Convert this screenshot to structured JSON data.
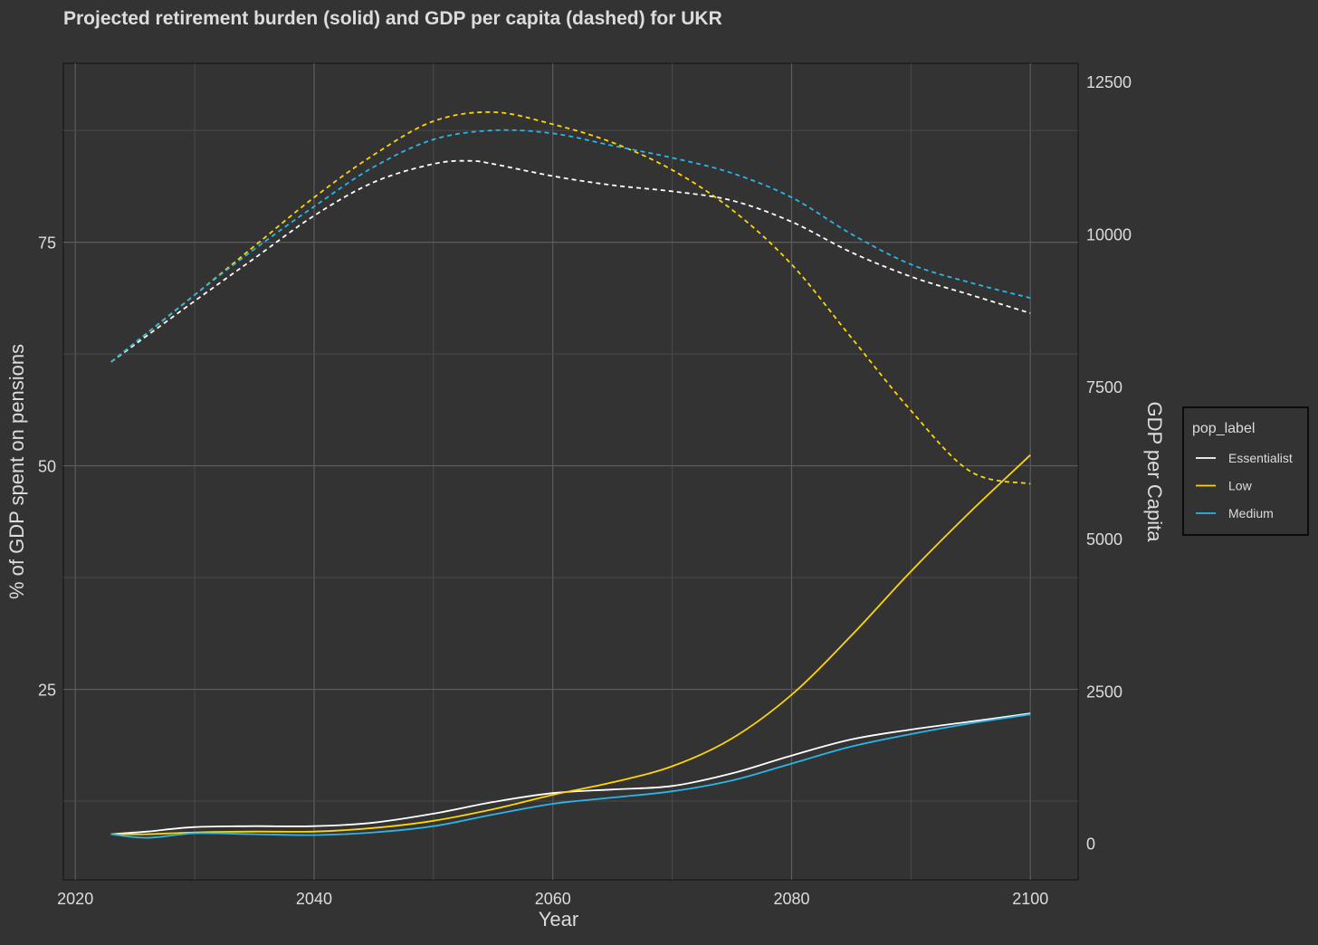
{
  "chart_data": {
    "type": "line",
    "title": "Projected retirement burden (solid) and GDP per capita (dashed) for UKR",
    "xlabel": "Year",
    "ylabel": "% of GDP spent on pensions",
    "y2label": "GDP per Capita",
    "xlim": [
      2019,
      2104
    ],
    "ylim": [
      3.7,
      95
    ],
    "y2lim": [
      -600,
      12800
    ],
    "x_ticks": [
      2020,
      2040,
      2060,
      2080,
      2100
    ],
    "y_ticks": [
      25,
      50,
      75
    ],
    "y2_ticks": [
      0,
      2500,
      5000,
      7500,
      10000,
      12500
    ],
    "legend": {
      "title": "pop_label",
      "position": "right"
    },
    "colors": {
      "Essentialist": "#ffffff",
      "Low": "#ffd700",
      "Medium": "#29b6e8"
    },
    "series": [
      {
        "name": "Essentialist",
        "kind": "pension",
        "axis": "left",
        "style": "solid",
        "x": [
          2023,
          2026,
          2030,
          2035,
          2040,
          2045,
          2050,
          2055,
          2060,
          2065,
          2070,
          2075,
          2080,
          2085,
          2090,
          2095,
          2100
        ],
        "values": [
          8.8,
          9.1,
          9.6,
          9.7,
          9.7,
          10.1,
          11.1,
          12.4,
          13.4,
          13.8,
          14.2,
          15.6,
          17.6,
          19.4,
          20.5,
          21.4,
          22.3
        ]
      },
      {
        "name": "Low",
        "kind": "pension",
        "axis": "left",
        "style": "solid",
        "x": [
          2023,
          2026,
          2030,
          2035,
          2040,
          2045,
          2050,
          2055,
          2060,
          2065,
          2070,
          2075,
          2080,
          2085,
          2090,
          2095,
          2100
        ],
        "values": [
          8.8,
          8.8,
          9.0,
          9.1,
          9.1,
          9.5,
          10.3,
          11.6,
          13.2,
          14.6,
          16.4,
          19.5,
          24.4,
          31.0,
          38.2,
          44.9,
          51.2
        ]
      },
      {
        "name": "Medium",
        "kind": "pension",
        "axis": "left",
        "style": "solid",
        "x": [
          2023,
          2026,
          2030,
          2035,
          2040,
          2045,
          2050,
          2055,
          2060,
          2065,
          2070,
          2075,
          2080,
          2085,
          2090,
          2095,
          2100
        ],
        "values": [
          8.8,
          8.4,
          8.9,
          8.8,
          8.7,
          9.0,
          9.7,
          11.0,
          12.2,
          12.9,
          13.6,
          14.8,
          16.7,
          18.6,
          20.0,
          21.2,
          22.2
        ]
      },
      {
        "name": "Essentialist",
        "kind": "gdp",
        "axis": "right",
        "style": "dashed",
        "x": [
          2023,
          2030,
          2035,
          2040,
          2045,
          2050,
          2053,
          2055,
          2060,
          2065,
          2070,
          2075,
          2080,
          2085,
          2090,
          2095,
          2100
        ],
        "values": [
          7900,
          8900,
          9600,
          10300,
          10850,
          11150,
          11200,
          11150,
          10950,
          10800,
          10700,
          10550,
          10200,
          9700,
          9300,
          9000,
          8700
        ]
      },
      {
        "name": "Low",
        "kind": "gdp",
        "axis": "right",
        "style": "dashed",
        "x": [
          2023,
          2030,
          2035,
          2040,
          2045,
          2050,
          2055,
          2060,
          2065,
          2070,
          2075,
          2080,
          2085,
          2090,
          2095,
          2100
        ],
        "values": [
          7900,
          9000,
          9800,
          10600,
          11300,
          11850,
          12000,
          11800,
          11500,
          11050,
          10400,
          9500,
          8300,
          7100,
          6100,
          5900
        ]
      },
      {
        "name": "Medium",
        "kind": "gdp",
        "axis": "right",
        "style": "dashed",
        "x": [
          2023,
          2030,
          2035,
          2040,
          2045,
          2050,
          2055,
          2060,
          2065,
          2070,
          2075,
          2080,
          2085,
          2090,
          2095,
          2100
        ],
        "values": [
          7900,
          9000,
          9750,
          10450,
          11100,
          11550,
          11700,
          11650,
          11450,
          11250,
          11000,
          10600,
          10000,
          9500,
          9200,
          8950
        ]
      }
    ]
  }
}
